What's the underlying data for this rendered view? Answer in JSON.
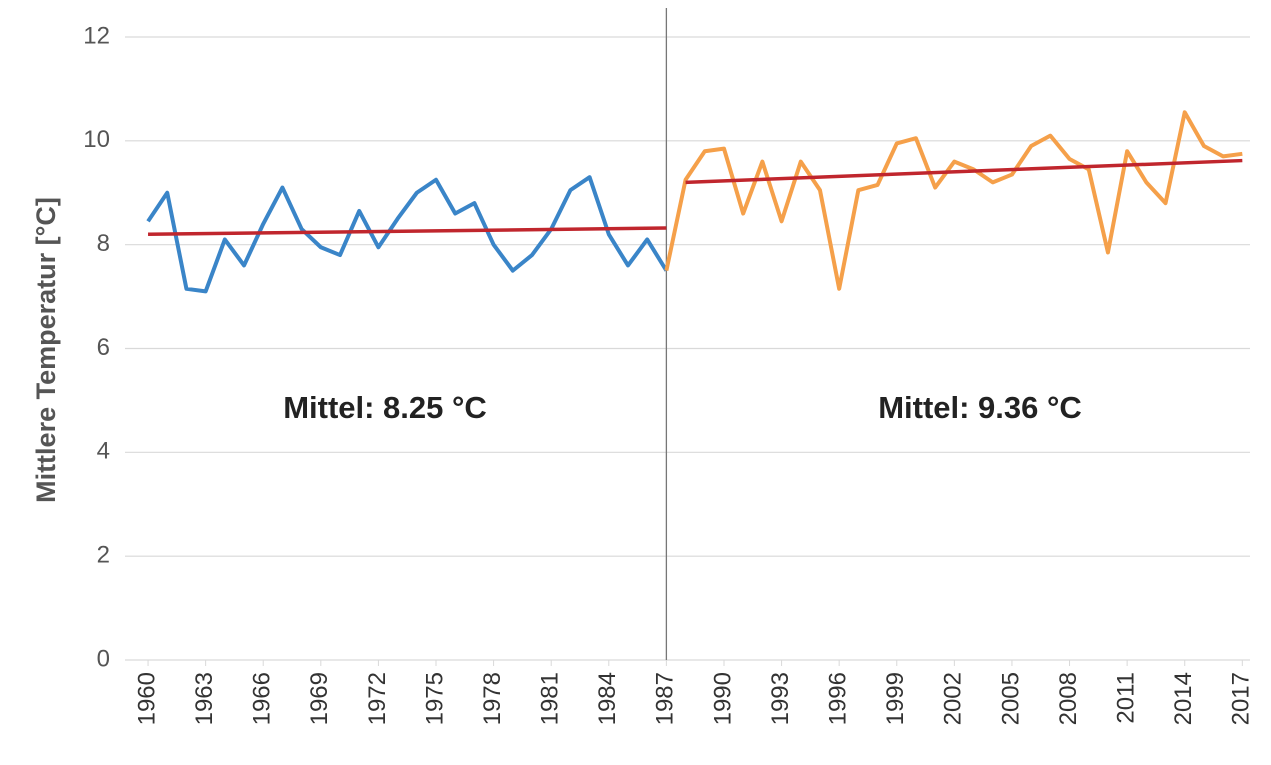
{
  "chart_data": {
    "type": "line",
    "y_label": "Mittlere Temperatur [°C]",
    "x": [
      1960,
      1961,
      1962,
      1963,
      1964,
      1965,
      1966,
      1967,
      1968,
      1969,
      1970,
      1971,
      1972,
      1973,
      1974,
      1975,
      1976,
      1977,
      1978,
      1979,
      1980,
      1981,
      1982,
      1983,
      1984,
      1985,
      1986,
      1987,
      1988,
      1989,
      1990,
      1991,
      1992,
      1993,
      1994,
      1995,
      1996,
      1997,
      1998,
      1999,
      2000,
      2001,
      2002,
      2003,
      2004,
      2005,
      2006,
      2007,
      2008,
      2009,
      2010,
      2011,
      2012,
      2013,
      2014,
      2015,
      2016,
      2017
    ],
    "series": [
      {
        "color": "#3a85c8",
        "values": [
          8.45,
          9.0,
          7.15,
          7.1,
          8.1,
          7.6,
          8.4,
          9.1,
          8.3,
          7.95,
          7.8,
          8.65,
          7.95,
          8.5,
          9.0,
          9.25,
          8.6,
          8.8,
          8.0,
          7.5,
          7.8,
          8.3,
          9.05,
          9.3,
          8.2,
          7.6,
          8.1,
          7.5,
          null,
          null,
          null,
          null,
          null,
          null,
          null,
          null,
          null,
          null,
          null,
          null,
          null,
          null,
          null,
          null,
          null,
          null,
          null,
          null,
          null,
          null,
          null,
          null,
          null,
          null,
          null,
          null,
          null,
          null
        ]
      },
      {
        "color": "#f5a04a",
        "values": [
          null,
          null,
          null,
          null,
          null,
          null,
          null,
          null,
          null,
          null,
          null,
          null,
          null,
          null,
          null,
          null,
          null,
          null,
          null,
          null,
          null,
          null,
          null,
          null,
          null,
          null,
          null,
          7.5,
          9.25,
          9.8,
          9.85,
          8.6,
          9.6,
          8.45,
          9.6,
          9.05,
          7.15,
          9.05,
          9.15,
          9.95,
          10.05,
          9.1,
          9.6,
          9.45,
          9.2,
          9.35,
          9.9,
          10.1,
          9.65,
          9.45,
          7.85,
          9.8,
          9.2,
          8.8,
          10.55,
          9.9,
          9.7,
          9.75
        ]
      }
    ],
    "trend_lines": [
      {
        "color": "#c0262d",
        "x": [
          1960,
          1987
        ],
        "values": [
          8.2,
          8.32
        ]
      },
      {
        "color": "#c0262d",
        "x": [
          1988,
          2017
        ],
        "values": [
          9.2,
          9.62
        ]
      }
    ],
    "vline": 1987,
    "annotations": [
      "Mittel: 8.25 °C",
      "Mittel: 9.36 °C"
    ],
    "xlim": [
      1958.8,
      2017.4
    ],
    "xticks": [
      1960,
      1963,
      1966,
      1969,
      1972,
      1975,
      1978,
      1981,
      1984,
      1987,
      1990,
      1993,
      1996,
      1999,
      2002,
      2005,
      2008,
      2011,
      2014,
      2017
    ],
    "ylim": [
      0,
      12
    ],
    "yticks": [
      0,
      2,
      4,
      6,
      8,
      10,
      12
    ],
    "grid": true
  }
}
